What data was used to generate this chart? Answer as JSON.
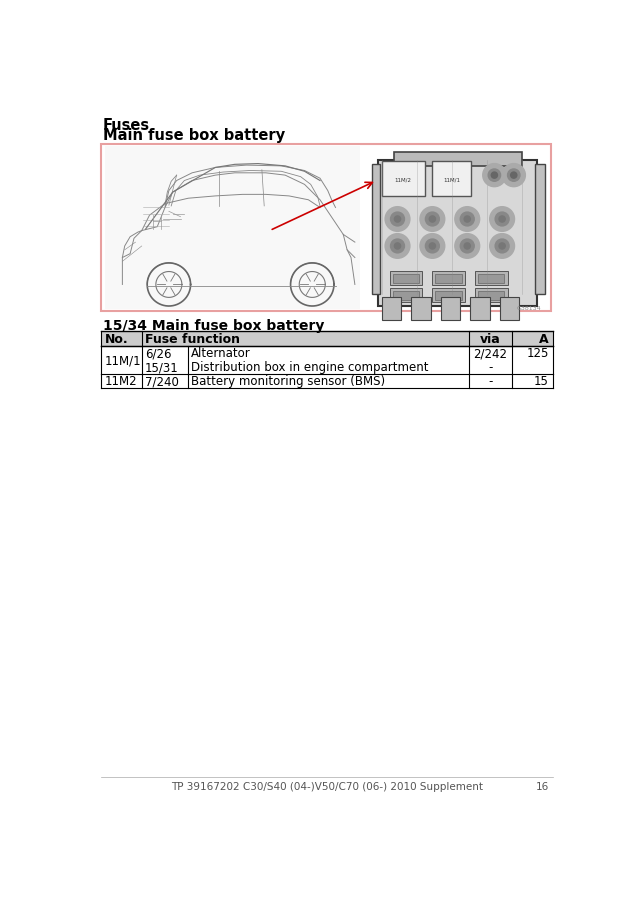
{
  "title_line1": "Fuses",
  "title_line2": "Main fuse box battery",
  "section_title": "15/34 Main fuse box battery",
  "table_headers": [
    "No.",
    "Fuse function",
    "via",
    "A"
  ],
  "footer_text": "TP 39167202 C30/S40 (04-)V50/C70 (06-) 2010 Supplement",
  "page_number": "16",
  "bg_color": "#ffffff",
  "table_border_color": "#000000",
  "header_bg": "#cccccc",
  "title_color": "#000000",
  "image_border_color": "#e8a0a0",
  "rows": [
    {
      "no": "11M/1",
      "fuse_nums": [
        "6/26",
        "15/31"
      ],
      "functions": [
        "Alternator",
        "Distribution box in engine compartment"
      ],
      "via": [
        "2/242",
        "-"
      ],
      "a": [
        "125",
        ""
      ]
    },
    {
      "no": "11M2",
      "fuse_nums": [
        "7/240"
      ],
      "functions": [
        "Battery monitoring sensor (BMS)"
      ],
      "via": [
        "-"
      ],
      "a": [
        "15"
      ]
    }
  ],
  "img_ref": "G38134"
}
